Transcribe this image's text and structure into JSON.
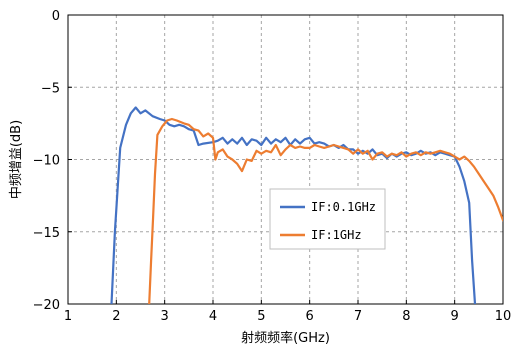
{
  "chart_data": {
    "type": "line",
    "title": "",
    "xlabel": "射频频率(GHz)",
    "ylabel": "中频增益(dB)",
    "xlim": [
      1,
      10
    ],
    "ylim": [
      -20,
      0
    ],
    "xticks": [
      1,
      2,
      3,
      4,
      5,
      6,
      7,
      8,
      9,
      10
    ],
    "yticks": [
      0,
      -5,
      -10,
      -15,
      -20
    ],
    "grid": true,
    "legend_position": "center-right",
    "series": [
      {
        "name": "IF:0.1GHz",
        "color": "#4472c4",
        "points": [
          [
            1.9,
            -20.0
          ],
          [
            1.97,
            -15.0
          ],
          [
            2.08,
            -9.2
          ],
          [
            2.2,
            -7.6
          ],
          [
            2.3,
            -6.8
          ],
          [
            2.4,
            -6.4
          ],
          [
            2.5,
            -6.8
          ],
          [
            2.6,
            -6.6
          ],
          [
            2.75,
            -7.0
          ],
          [
            2.9,
            -7.2
          ],
          [
            3.0,
            -7.3
          ],
          [
            3.1,
            -7.6
          ],
          [
            3.2,
            -7.7
          ],
          [
            3.3,
            -7.6
          ],
          [
            3.4,
            -7.7
          ],
          [
            3.5,
            -7.9
          ],
          [
            3.6,
            -8.0
          ],
          [
            3.7,
            -9.0
          ],
          [
            3.8,
            -8.9
          ],
          [
            4.0,
            -8.8
          ],
          [
            4.1,
            -8.7
          ],
          [
            4.2,
            -8.5
          ],
          [
            4.3,
            -8.9
          ],
          [
            4.4,
            -8.6
          ],
          [
            4.5,
            -8.9
          ],
          [
            4.6,
            -8.5
          ],
          [
            4.7,
            -9.0
          ],
          [
            4.8,
            -8.6
          ],
          [
            4.9,
            -8.7
          ],
          [
            5.0,
            -9.0
          ],
          [
            5.1,
            -8.5
          ],
          [
            5.2,
            -8.9
          ],
          [
            5.3,
            -8.6
          ],
          [
            5.4,
            -8.8
          ],
          [
            5.5,
            -8.5
          ],
          [
            5.6,
            -9.0
          ],
          [
            5.7,
            -8.6
          ],
          [
            5.8,
            -8.9
          ],
          [
            5.9,
            -8.6
          ],
          [
            6.0,
            -8.5
          ],
          [
            6.1,
            -8.9
          ],
          [
            6.2,
            -8.8
          ],
          [
            6.3,
            -8.9
          ],
          [
            6.4,
            -9.1
          ],
          [
            6.5,
            -9.0
          ],
          [
            6.6,
            -9.2
          ],
          [
            6.7,
            -9.0
          ],
          [
            6.8,
            -9.3
          ],
          [
            6.9,
            -9.3
          ],
          [
            7.0,
            -9.6
          ],
          [
            7.1,
            -9.4
          ],
          [
            7.2,
            -9.6
          ],
          [
            7.3,
            -9.3
          ],
          [
            7.4,
            -9.7
          ],
          [
            7.5,
            -9.6
          ],
          [
            7.6,
            -9.9
          ],
          [
            7.7,
            -9.6
          ],
          [
            7.8,
            -9.8
          ],
          [
            7.9,
            -9.6
          ],
          [
            8.0,
            -9.5
          ],
          [
            8.1,
            -9.7
          ],
          [
            8.2,
            -9.6
          ],
          [
            8.3,
            -9.4
          ],
          [
            8.4,
            -9.6
          ],
          [
            8.5,
            -9.5
          ],
          [
            8.6,
            -9.7
          ],
          [
            8.7,
            -9.5
          ],
          [
            8.8,
            -9.6
          ],
          [
            8.9,
            -9.7
          ],
          [
            9.0,
            -9.8
          ],
          [
            9.1,
            -10.5
          ],
          [
            9.2,
            -11.5
          ],
          [
            9.3,
            -13.0
          ],
          [
            9.36,
            -17.0
          ],
          [
            9.42,
            -20.0
          ]
        ]
      },
      {
        "name": "IF:1GHz",
        "color": "#ed7d31",
        "points": [
          [
            2.68,
            -20.0
          ],
          [
            2.72,
            -17.0
          ],
          [
            2.76,
            -14.0
          ],
          [
            2.8,
            -11.0
          ],
          [
            2.85,
            -8.3
          ],
          [
            2.95,
            -7.7
          ],
          [
            3.05,
            -7.3
          ],
          [
            3.15,
            -7.2
          ],
          [
            3.25,
            -7.3
          ],
          [
            3.4,
            -7.5
          ],
          [
            3.5,
            -7.6
          ],
          [
            3.6,
            -7.9
          ],
          [
            3.7,
            -8.0
          ],
          [
            3.8,
            -8.4
          ],
          [
            3.9,
            -8.2
          ],
          [
            4.0,
            -8.5
          ],
          [
            4.05,
            -10.0
          ],
          [
            4.1,
            -9.5
          ],
          [
            4.2,
            -9.3
          ],
          [
            4.3,
            -9.8
          ],
          [
            4.4,
            -10.0
          ],
          [
            4.5,
            -10.3
          ],
          [
            4.6,
            -10.8
          ],
          [
            4.7,
            -10.0
          ],
          [
            4.8,
            -10.1
          ],
          [
            4.9,
            -9.4
          ],
          [
            5.0,
            -9.6
          ],
          [
            5.1,
            -9.4
          ],
          [
            5.2,
            -9.5
          ],
          [
            5.3,
            -9.0
          ],
          [
            5.4,
            -9.7
          ],
          [
            5.5,
            -9.3
          ],
          [
            5.6,
            -9.0
          ],
          [
            5.7,
            -9.2
          ],
          [
            5.8,
            -9.1
          ],
          [
            5.9,
            -9.2
          ],
          [
            6.0,
            -9.2
          ],
          [
            6.1,
            -9.0
          ],
          [
            6.2,
            -9.1
          ],
          [
            6.3,
            -9.2
          ],
          [
            6.4,
            -9.1
          ],
          [
            6.5,
            -9.0
          ],
          [
            6.6,
            -9.1
          ],
          [
            6.7,
            -9.2
          ],
          [
            6.8,
            -9.3
          ],
          [
            6.9,
            -9.6
          ],
          [
            7.0,
            -9.3
          ],
          [
            7.1,
            -9.6
          ],
          [
            7.2,
            -9.4
          ],
          [
            7.3,
            -10.0
          ],
          [
            7.4,
            -9.6
          ],
          [
            7.5,
            -9.5
          ],
          [
            7.6,
            -9.8
          ],
          [
            7.7,
            -9.6
          ],
          [
            7.8,
            -9.7
          ],
          [
            7.9,
            -9.5
          ],
          [
            8.0,
            -9.8
          ],
          [
            8.1,
            -9.6
          ],
          [
            8.2,
            -9.5
          ],
          [
            8.3,
            -9.7
          ],
          [
            8.4,
            -9.5
          ],
          [
            8.5,
            -9.6
          ],
          [
            8.6,
            -9.5
          ],
          [
            8.7,
            -9.4
          ],
          [
            8.8,
            -9.5
          ],
          [
            8.9,
            -9.6
          ],
          [
            9.0,
            -9.8
          ],
          [
            9.1,
            -10.0
          ],
          [
            9.2,
            -9.8
          ],
          [
            9.3,
            -10.1
          ],
          [
            9.4,
            -10.5
          ],
          [
            9.5,
            -11.0
          ],
          [
            9.6,
            -11.5
          ],
          [
            9.7,
            -12.0
          ],
          [
            9.8,
            -12.5
          ],
          [
            9.9,
            -13.3
          ],
          [
            10.0,
            -14.2
          ]
        ]
      }
    ]
  }
}
